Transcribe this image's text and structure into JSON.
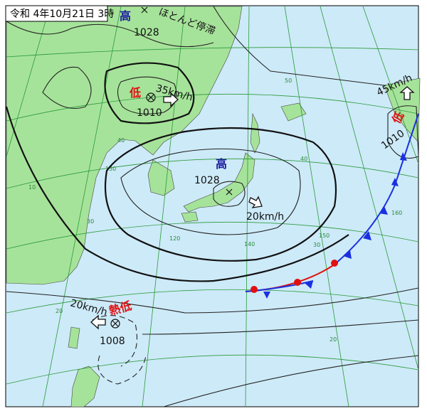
{
  "header": {
    "title": "令和 4年10月21日 3時"
  },
  "systems": [
    {
      "kind": "高",
      "pressure": 1028,
      "note": "ほとんど停滞"
    },
    {
      "kind": "低",
      "pressure": 1010,
      "speed": "35km/h"
    },
    {
      "kind": "高",
      "pressure": 1028,
      "speed": "20km/h"
    },
    {
      "kind": "低",
      "pressure": 1010,
      "speed": "45km/h"
    },
    {
      "kind": "熱低",
      "pressure": 1008,
      "speed": "20km/h"
    }
  ],
  "grid_labels": [
    "50",
    "40",
    "40",
    "30",
    "30",
    "20",
    "20",
    "10",
    "120",
    "130",
    "140",
    "150",
    "160"
  ]
}
